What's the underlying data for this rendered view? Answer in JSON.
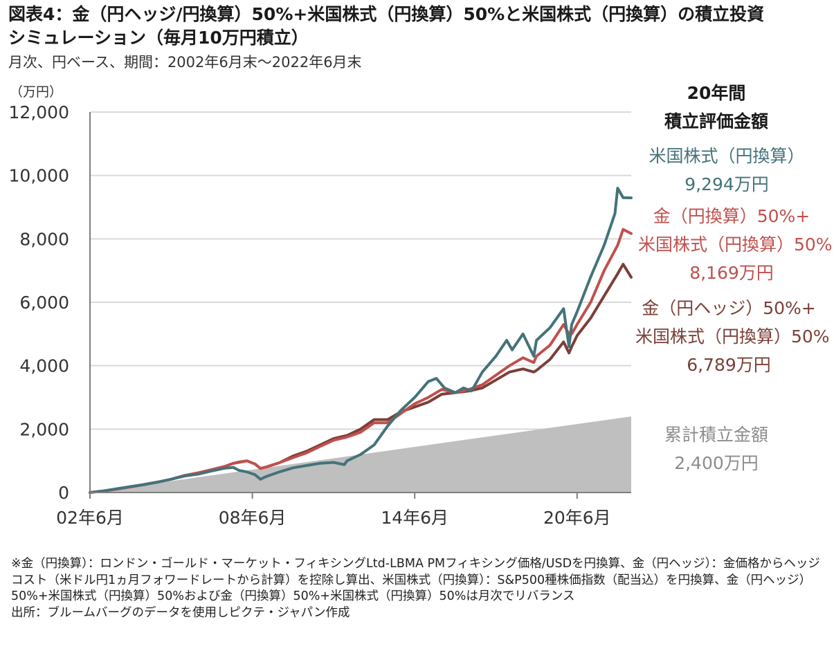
{
  "title": {
    "line1": "図表4：金（円ヘッジ/円換算）50%+米国株式（円換算）50%と米国株式（円換算）の積立投資",
    "line2": "シミュレーション（毎月10万円積立）"
  },
  "subtitle": "月次、円ベース、期間：2002年6月末～2022年6月末",
  "colors": {
    "us": "#44737a",
    "gold_jpy": "#c0504d",
    "gold_hedge": "#7b3f38",
    "cumulative": "#bfbfbf",
    "grid": "#d9d9d9",
    "axis": "#7f7f7f"
  },
  "chart_data": {
    "type": "line",
    "unit_label": "（万円）",
    "ylim": [
      0,
      12000
    ],
    "yticks": [
      "12,000",
      "10,000",
      "8,000",
      "6,000",
      "4,000",
      "2,000",
      "0"
    ],
    "xlim": [
      2002.5,
      2022.5
    ],
    "xticks": [
      {
        "x": 2002.5,
        "label": "02年6月"
      },
      {
        "x": 2008.5,
        "label": "08年6月"
      },
      {
        "x": 2014.5,
        "label": "14年6月"
      },
      {
        "x": 2020.5,
        "label": "20年6月"
      }
    ],
    "series": [
      {
        "name": "累計積立金額",
        "kind": "area",
        "color": "#bfbfbf",
        "x": [
          2002.5,
          2022.5
        ],
        "values": [
          0,
          2400
        ],
        "end_label": "2,400万円"
      },
      {
        "name": "米国株式（円換算）",
        "kind": "line",
        "color": "#44737a",
        "end_label": "9,294万円",
        "x": [
          2002.5,
          2003.0,
          2003.5,
          2004.0,
          2004.5,
          2005.0,
          2005.5,
          2006.0,
          2006.5,
          2007.0,
          2007.5,
          2007.8,
          2008.0,
          2008.3,
          2008.6,
          2008.8,
          2009.0,
          2009.2,
          2009.5,
          2010.0,
          2010.5,
          2011.0,
          2011.5,
          2011.9,
          2012.0,
          2012.5,
          2013.0,
          2013.5,
          2014.0,
          2014.5,
          2015.0,
          2015.3,
          2015.6,
          2016.0,
          2016.3,
          2016.6,
          2017.0,
          2017.5,
          2017.9,
          2018.1,
          2018.5,
          2018.9,
          2019.0,
          2019.5,
          2020.0,
          2020.2,
          2020.3,
          2020.5,
          2021.0,
          2021.5,
          2021.9,
          2022.0,
          2022.2,
          2022.5
        ],
        "values": [
          0,
          50,
          120,
          190,
          250,
          330,
          420,
          520,
          580,
          680,
          770,
          790,
          700,
          650,
          560,
          420,
          500,
          560,
          650,
          780,
          850,
          920,
          950,
          880,
          1000,
          1200,
          1500,
          2100,
          2600,
          3000,
          3500,
          3600,
          3300,
          3150,
          3300,
          3200,
          3800,
          4300,
          4800,
          4500,
          5000,
          4300,
          4800,
          5200,
          5800,
          4600,
          5300,
          5700,
          6800,
          7800,
          8800,
          9600,
          9300,
          9294
        ]
      },
      {
        "name": "金（円換算）50%+米国株式（円換算）50%",
        "kind": "line",
        "color": "#c0504d",
        "end_label": "8,169万円",
        "x": [
          2002.5,
          2003.0,
          2003.5,
          2004.0,
          2004.5,
          2005.0,
          2005.5,
          2006.0,
          2006.5,
          2007.0,
          2007.5,
          2007.8,
          2008.0,
          2008.3,
          2008.6,
          2008.8,
          2009.0,
          2009.5,
          2010.0,
          2010.5,
          2011.0,
          2011.5,
          2012.0,
          2012.5,
          2013.0,
          2013.5,
          2014.0,
          2014.5,
          2015.0,
          2015.5,
          2016.0,
          2016.5,
          2017.0,
          2017.5,
          2018.0,
          2018.5,
          2018.9,
          2019.0,
          2019.5,
          2020.0,
          2020.2,
          2020.3,
          2020.5,
          2021.0,
          2021.5,
          2022.0,
          2022.2,
          2022.5
        ],
        "values": [
          0,
          50,
          110,
          180,
          250,
          330,
          420,
          540,
          620,
          720,
          830,
          920,
          950,
          1000,
          900,
          760,
          800,
          940,
          1100,
          1250,
          1450,
          1650,
          1750,
          1900,
          2200,
          2200,
          2500,
          2800,
          3000,
          3250,
          3150,
          3250,
          3400,
          3700,
          4000,
          4250,
          4100,
          4300,
          4650,
          5300,
          5000,
          5000,
          5300,
          6000,
          7000,
          7800,
          8300,
          8169
        ]
      },
      {
        "name": "金（円ヘッジ）50%+米国株式（円換算）50%",
        "kind": "line",
        "color": "#7b3f38",
        "end_label": "6,789万円",
        "x": [
          2002.5,
          2003.0,
          2003.5,
          2004.0,
          2004.5,
          2005.0,
          2005.5,
          2006.0,
          2006.5,
          2007.0,
          2007.5,
          2007.8,
          2008.0,
          2008.3,
          2008.6,
          2008.8,
          2009.0,
          2009.5,
          2010.0,
          2010.5,
          2011.0,
          2011.5,
          2012.0,
          2012.5,
          2013.0,
          2013.5,
          2014.0,
          2014.5,
          2015.0,
          2015.5,
          2016.0,
          2016.5,
          2017.0,
          2017.5,
          2018.0,
          2018.5,
          2018.9,
          2019.0,
          2019.5,
          2020.0,
          2020.2,
          2020.3,
          2020.5,
          2021.0,
          2021.5,
          2022.0,
          2022.2,
          2022.5
        ],
        "values": [
          0,
          50,
          110,
          180,
          250,
          330,
          420,
          540,
          620,
          720,
          830,
          920,
          960,
          1000,
          900,
          760,
          800,
          940,
          1150,
          1300,
          1500,
          1700,
          1800,
          2000,
          2300,
          2300,
          2550,
          2700,
          2850,
          3100,
          3150,
          3200,
          3300,
          3550,
          3800,
          3900,
          3800,
          3850,
          4200,
          4750,
          4400,
          4600,
          4950,
          5500,
          6200,
          6900,
          7200,
          6789
        ]
      }
    ]
  },
  "sidebar": {
    "heading1": "20年間",
    "heading2": "積立評価金額",
    "us_name": "米国株式（円換算）",
    "us_value": "9,294万円",
    "gj_name1": "金（円換算）50%+",
    "gj_name2": "米国株式（円換算）50%",
    "gj_value": "8,169万円",
    "gh_name1": "金（円ヘッジ）50%+",
    "gh_name2": "米国株式（円換算）50%",
    "gh_value": "6,789万円",
    "cum_name": "累計積立金額",
    "cum_value": "2,400万円"
  },
  "notes": {
    "line1": "※金（円換算）：ロンドン・ゴールド・マーケット・フィキシングLtd-LBMA PMフィキシング価格/USDを円換算、金（円ヘッジ）：金価格からヘッジコスト（米ドル円1ヵ月フォワードレートから計算）を控除し算出、米国株式（円換算）：S&P500種株価指数（配当込）を円換算、金（円ヘッジ）50%+米国株式（円換算）50%および金（円換算）50%+米国株式（円換算）50%は月次でリバランス",
    "line2": "出所：ブルームバーグのデータを使用しピクテ・ジャパン作成"
  }
}
